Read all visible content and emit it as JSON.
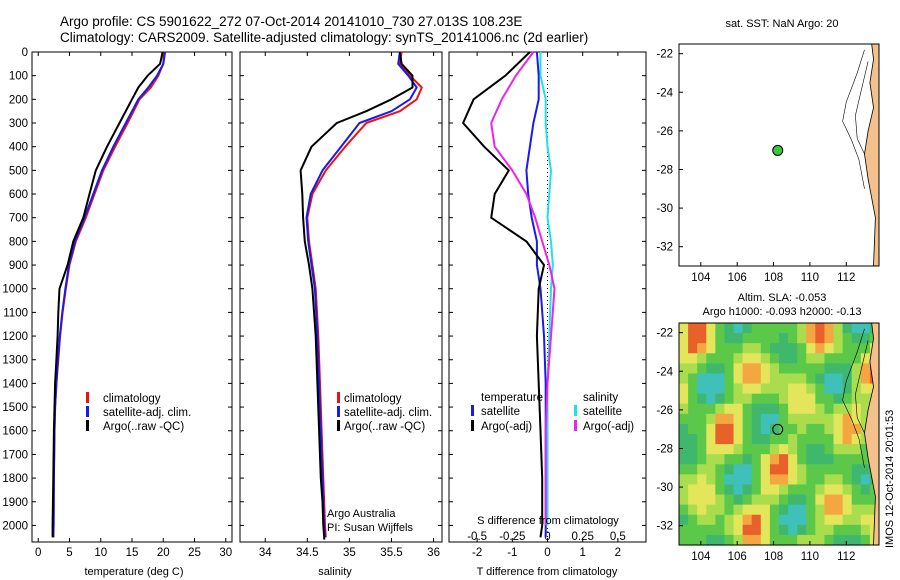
{
  "header": {
    "title_line1": "Argo profile: CS 5901622_272 07-Oct-2014 20141010_730 27.013S 108.23E",
    "title_line2": "Climatology: CARS2009. Satellite-adjusted climatology: synTS_20141006.nc (2d earlier)"
  },
  "side_stamp": "IMOS 12-Oct-2014 20:01:53",
  "colors": {
    "climatology": "#ee1111",
    "satellite": "#1a1aee",
    "argo": "#000000",
    "satellite_salinity": "#22e0e8",
    "argo_salinity": "#ee22ee",
    "land": "#f4c08c",
    "argo_dot": "#33cc33"
  },
  "chart_data": [
    {
      "id": "temperature",
      "type": "line",
      "xlabel": "temperature (deg C)",
      "ylabel": "",
      "xlim": [
        -1,
        31
      ],
      "ylim": [
        2070,
        0
      ],
      "xticks": [
        0,
        5,
        10,
        15,
        20,
        25,
        30
      ],
      "yticks": [
        0,
        100,
        200,
        300,
        400,
        500,
        600,
        700,
        800,
        900,
        1000,
        1100,
        1200,
        1300,
        1400,
        1500,
        1600,
        1700,
        1800,
        1900,
        2000
      ],
      "legend": [
        "climatology",
        "satellite-adj. clim.",
        "Argo(..raw -QC)"
      ],
      "series": [
        {
          "name": "climatology",
          "x": [
            20.1,
            20.0,
            19.2,
            18.0,
            16.2,
            14.3,
            12.3,
            10.4,
            9.0,
            7.6,
            6.0,
            5.0,
            4.4,
            3.9,
            3.5,
            3.2,
            2.9,
            2.7,
            2.6,
            2.5,
            2.45,
            2.4
          ],
          "y": [
            0,
            50,
            100,
            150,
            200,
            300,
            400,
            500,
            600,
            700,
            800,
            900,
            1000,
            1100,
            1200,
            1300,
            1400,
            1500,
            1600,
            1800,
            2000,
            2050
          ]
        },
        {
          "name": "satellite-adj. clim.",
          "x": [
            20.3,
            20.0,
            19.0,
            17.6,
            16.0,
            14.0,
            12.0,
            10.2,
            8.8,
            7.4,
            5.9,
            4.9,
            4.35,
            3.85,
            3.45,
            3.15,
            2.9,
            2.7,
            2.6,
            2.5,
            2.45,
            2.4
          ],
          "y": [
            0,
            50,
            100,
            150,
            200,
            300,
            400,
            500,
            600,
            700,
            800,
            900,
            1000,
            1100,
            1200,
            1300,
            1400,
            1500,
            1600,
            1800,
            2000,
            2050
          ]
        },
        {
          "name": "Argo(..raw -QC)",
          "x": [
            19.9,
            19.5,
            17.5,
            16.0,
            15.0,
            13.0,
            11.0,
            9.2,
            8.2,
            7.2,
            5.6,
            4.7,
            3.4,
            3.2,
            3.1,
            2.9,
            2.7,
            2.6,
            2.5,
            2.4,
            2.3,
            2.3
          ],
          "y": [
            0,
            50,
            100,
            150,
            200,
            300,
            400,
            500,
            600,
            700,
            800,
            900,
            1000,
            1100,
            1200,
            1300,
            1400,
            1500,
            1600,
            1800,
            2000,
            2050
          ]
        }
      ]
    },
    {
      "id": "salinity",
      "type": "line",
      "xlabel": "salinity",
      "xlim": [
        33.7,
        36.1
      ],
      "ylim": [
        2070,
        0
      ],
      "xticks": [
        34,
        34.5,
        35,
        35.5,
        36
      ],
      "legend": [
        "climatology",
        "satellite-adj. clim.",
        "Argo(..raw -QC)"
      ],
      "annotation": [
        "Argo Australia",
        "PI: Susan Wijffels"
      ],
      "series": [
        {
          "name": "climatology",
          "x": [
            35.62,
            35.6,
            35.72,
            35.86,
            35.8,
            35.6,
            35.2,
            34.95,
            34.72,
            34.56,
            34.5,
            34.52,
            34.56,
            34.6,
            34.63,
            34.65,
            34.67,
            34.69,
            34.7,
            34.71,
            34.72
          ],
          "y": [
            0,
            50,
            100,
            150,
            200,
            250,
            300,
            400,
            500,
            600,
            700,
            800,
            900,
            1000,
            1200,
            1400,
            1600,
            1800,
            1900,
            2000,
            2050
          ]
        },
        {
          "name": "satellite-adj. clim.",
          "x": [
            35.6,
            35.58,
            35.7,
            35.8,
            35.72,
            35.5,
            35.12,
            34.9,
            34.68,
            34.54,
            34.49,
            34.51,
            34.55,
            34.59,
            34.62,
            34.64,
            34.66,
            34.68,
            34.69,
            34.7,
            34.71
          ],
          "y": [
            0,
            50,
            100,
            150,
            200,
            250,
            300,
            400,
            500,
            600,
            700,
            800,
            900,
            1000,
            1200,
            1400,
            1600,
            1800,
            1900,
            2000,
            2050
          ]
        },
        {
          "name": "Argo(..raw -QC)",
          "x": [
            35.6,
            35.62,
            35.75,
            35.75,
            35.5,
            35.2,
            34.85,
            34.55,
            34.42,
            34.44,
            34.45,
            34.47,
            34.52,
            34.56,
            34.6,
            34.62,
            34.64,
            34.66,
            34.68,
            34.69,
            34.7,
            34.7
          ],
          "y": [
            0,
            50,
            100,
            150,
            200,
            250,
            300,
            400,
            500,
            600,
            700,
            800,
            900,
            1000,
            1200,
            1400,
            1600,
            1800,
            1900,
            2000,
            2050,
            2060
          ]
        }
      ]
    },
    {
      "id": "differences",
      "type": "line",
      "xlabel": "T difference from climatology",
      "xlabel_top": "S difference from climatology",
      "xlim": [
        -2.8,
        2.8
      ],
      "ylim": [
        2070,
        0
      ],
      "xticks": [
        -2,
        -1,
        0,
        1,
        2
      ],
      "sticks_labels": [
        "-0.5",
        "-0.25",
        "0",
        "0.25",
        "0.5"
      ],
      "legend_temperature": [
        "temperature",
        "satellite",
        "Argo(-adj)"
      ],
      "legend_salinity": [
        "salinity",
        "satellite",
        "Argo(-adj)"
      ],
      "series": [
        {
          "name": "temperature satellite",
          "x": [
            -0.3,
            -0.25,
            -0.25,
            -0.4,
            -0.5,
            -0.6,
            -0.55,
            -0.45,
            -0.3,
            -0.3,
            -0.2,
            -0.1,
            -0.05,
            -0.05,
            -0.05,
            -0.05,
            -0.05
          ],
          "y": [
            0,
            100,
            200,
            300,
            400,
            500,
            600,
            700,
            800,
            900,
            1000,
            1200,
            1400,
            1600,
            1800,
            2000,
            2050
          ]
        },
        {
          "name": "temperature Argo(-adj)",
          "x": [
            -0.5,
            -1.2,
            -2.1,
            -2.4,
            -1.8,
            -1.1,
            -1.5,
            -1.6,
            -0.6,
            -0.1,
            -0.25,
            -0.3,
            -0.25,
            -0.2,
            -0.15,
            -0.15,
            -0.2
          ],
          "y": [
            0,
            100,
            200,
            300,
            400,
            500,
            600,
            700,
            800,
            900,
            1000,
            1200,
            1400,
            1600,
            1800,
            2000,
            2050
          ]
        },
        {
          "name": "salinity satellite",
          "x": [
            -0.2,
            -0.2,
            -0.05,
            -0.05,
            0.0,
            0.1,
            0.05,
            0.0,
            0.1,
            0.15,
            0.1,
            0.05,
            0.0,
            0.0,
            0.0,
            0.0
          ],
          "y": [
            0,
            100,
            200,
            300,
            400,
            500,
            600,
            700,
            800,
            900,
            1000,
            1200,
            1400,
            1600,
            1800,
            2000
          ]
        },
        {
          "name": "salinity Argo(-adj)",
          "x": [
            -0.4,
            -0.9,
            -1.3,
            -1.6,
            -1.5,
            -1.0,
            -0.6,
            -0.35,
            -0.15,
            0.05,
            0.2,
            0.1,
            0.0,
            -0.05,
            -0.05,
            -0.05
          ],
          "y": [
            0,
            100,
            200,
            300,
            400,
            500,
            600,
            700,
            800,
            900,
            1000,
            1200,
            1400,
            1600,
            1800,
            2000
          ]
        }
      ]
    },
    {
      "id": "sst_map",
      "type": "scatter",
      "title": "sat. SST: NaN Argo: 20",
      "xlim": [
        102.8,
        113.8
      ],
      "ylim": [
        -33,
        -21.5
      ],
      "xticks": [
        104,
        106,
        108,
        110,
        112
      ],
      "yticks": [
        -22,
        -24,
        -26,
        -28,
        -30,
        -32
      ],
      "point": {
        "lon": 108.23,
        "lat": -27.013
      }
    },
    {
      "id": "sla_map",
      "type": "heatmap",
      "title_line1": "Altim. SLA: -0.053",
      "title_line2": "Argo h1000: -0.093 h2000: -0.13",
      "xlim": [
        102.8,
        113.8
      ],
      "ylim": [
        -33,
        -21.5
      ],
      "xticks": [
        104,
        106,
        108,
        110,
        112
      ],
      "yticks": [
        -22,
        -24,
        -26,
        -28,
        -30,
        -32
      ],
      "point": {
        "lon": 108.23,
        "lat": -27.013
      }
    }
  ]
}
